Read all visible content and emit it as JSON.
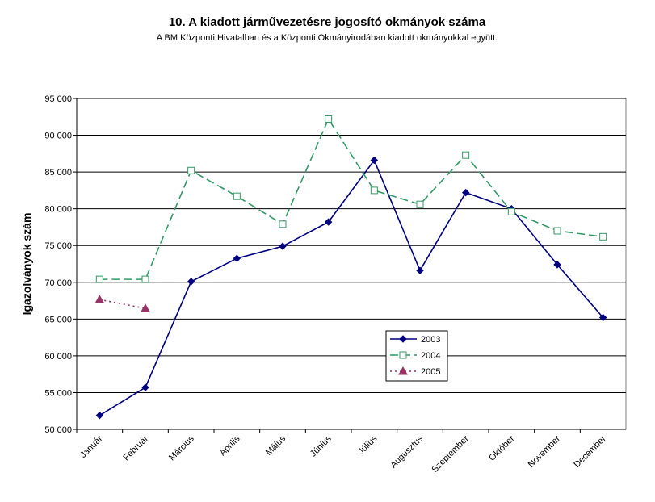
{
  "chart_data": {
    "type": "line",
    "title": "10. A kiadott járművezetésre jogosító okmányok száma",
    "subtitle": "A BM Központi Hivatalban és a Központi Okmányirodában kiadott okmányokkal együtt.",
    "y_label": "Igazolványok szám",
    "categories": [
      "Január",
      "Február",
      "Március",
      "Április",
      "Május",
      "Június",
      "Július",
      "Augusztus",
      "Szeptember",
      "Október",
      "November",
      "December"
    ],
    "series": [
      {
        "name": "2003",
        "color": "#000080",
        "dash": "solid",
        "marker": "diamond",
        "values": [
          51900,
          55700,
          70100,
          73250,
          74900,
          78200,
          86600,
          71600,
          82200,
          80000,
          72400,
          65200
        ]
      },
      {
        "name": "2004",
        "color": "#339966",
        "dash": "dashed",
        "marker": "square",
        "values": [
          70400,
          70400,
          85200,
          81700,
          77900,
          92200,
          82500,
          80600,
          87300,
          79600,
          77000,
          76200
        ]
      },
      {
        "name": "2005",
        "color": "#993366",
        "dash": "dotted",
        "marker": "triangle",
        "values": [
          67650,
          66450,
          null,
          null,
          null,
          null,
          null,
          null,
          null,
          null,
          null,
          null
        ]
      }
    ],
    "ylim": [
      50000,
      95000
    ],
    "yticks": [
      {
        "value": 50000,
        "label": "50 000"
      },
      {
        "value": 55000,
        "label": "55 000"
      },
      {
        "value": 60000,
        "label": "60 000"
      },
      {
        "value": 65000,
        "label": "65 000"
      },
      {
        "value": 70000,
        "label": "70 000"
      },
      {
        "value": 75000,
        "label": "75 000"
      },
      {
        "value": 80000,
        "label": "80 000"
      },
      {
        "value": 85000,
        "label": "85 000"
      },
      {
        "value": 90000,
        "label": "90 000"
      },
      {
        "value": 95000,
        "label": "95 000"
      }
    ],
    "grid": true
  }
}
